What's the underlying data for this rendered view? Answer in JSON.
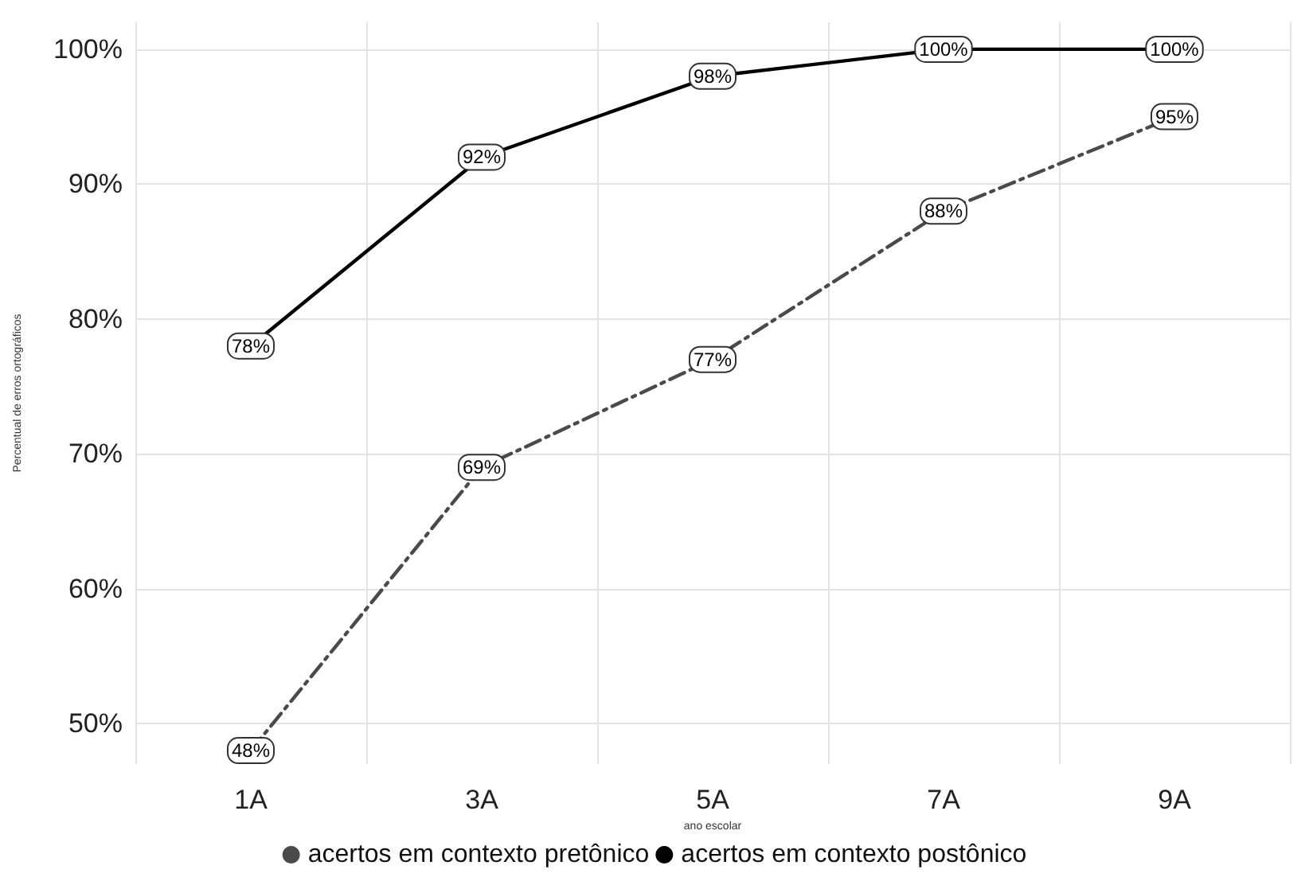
{
  "chart_data": {
    "type": "line",
    "xlabel": "ano escolar",
    "ylabel": "Percentual de erros ortográficos",
    "categories": [
      "1A",
      "3A",
      "5A",
      "7A",
      "9A"
    ],
    "series": [
      {
        "name": "acertos em contexto pretônico",
        "color": "#4a4a4a",
        "line_style": "dashed",
        "values": [
          48,
          69,
          77,
          88,
          95
        ],
        "value_labels": [
          "48%",
          "69%",
          "77%",
          "88%",
          "95%"
        ]
      },
      {
        "name": "acertos em contexto postônico",
        "color": "#000000",
        "line_style": "solid",
        "values": [
          78,
          92,
          98,
          100,
          100
        ],
        "value_labels": [
          "78%",
          "92%",
          "98%",
          "100%",
          "100%"
        ]
      }
    ],
    "ylim": [
      47,
      102
    ],
    "yticks": [
      {
        "value": 50,
        "label": "50%"
      },
      {
        "value": 60,
        "label": "60%"
      },
      {
        "value": 70,
        "label": "70%"
      },
      {
        "value": 80,
        "label": "80%"
      },
      {
        "value": 90,
        "label": "90%"
      },
      {
        "value": 100,
        "label": "100%"
      }
    ],
    "grid": true,
    "legend": "bottom",
    "marker": "circle"
  }
}
